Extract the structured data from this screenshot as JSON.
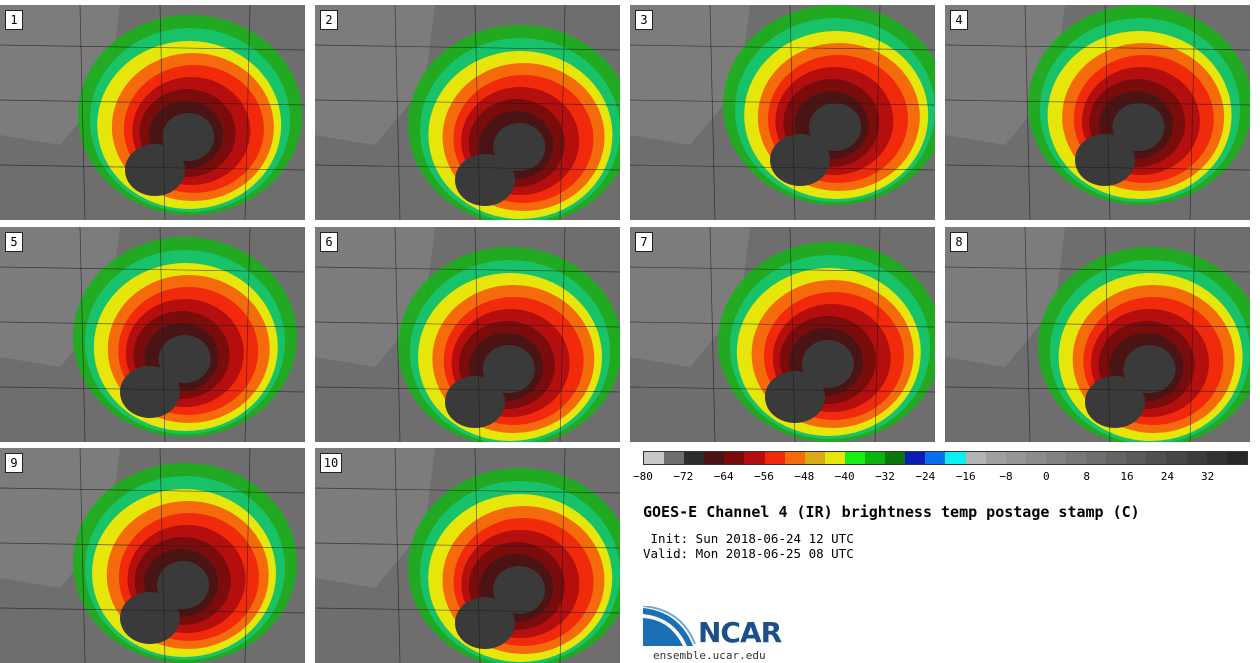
{
  "panels": [
    {
      "label": "1"
    },
    {
      "label": "2"
    },
    {
      "label": "3"
    },
    {
      "label": "4"
    },
    {
      "label": "5"
    },
    {
      "label": "6"
    },
    {
      "label": "7"
    },
    {
      "label": "8"
    },
    {
      "label": "9"
    },
    {
      "label": "10"
    }
  ],
  "colorbar": {
    "colors": [
      "#c8c8c8",
      "#6e6e6e",
      "#2d2d2d",
      "#4a1414",
      "#7a0c0c",
      "#b40e0e",
      "#f02a0a",
      "#f56a0a",
      "#dcaa14",
      "#e6e60a",
      "#14f014",
      "#0ab40a",
      "#0a780a",
      "#0a1eb4",
      "#0a6ef0",
      "#0af0f0",
      "#b4b4b4",
      "#a0a0a0",
      "#969696",
      "#8c8c8c",
      "#828282",
      "#787878",
      "#6e6e6e",
      "#646464",
      "#5a5a5a",
      "#505050",
      "#464646",
      "#3c3c3c",
      "#323232",
      "#282828"
    ],
    "tick_labels": [
      "−80",
      "−72",
      "−64",
      "−56",
      "−48",
      "−40",
      "−32",
      "−24",
      "−16",
      "−8",
      "0",
      "8",
      "16",
      "24",
      "32"
    ]
  },
  "title": "GOES-E Channel 4 (IR) brightness temp postage stamp (C)",
  "init_text": " Init: Sun 2018-06-24 12 UTC",
  "valid_text": "Valid: Mon 2018-06-25 08 UTC",
  "logo": {
    "text": "NCAR",
    "brand_color": "#1b4f8a"
  },
  "url": "ensemble.ucar.edu"
}
